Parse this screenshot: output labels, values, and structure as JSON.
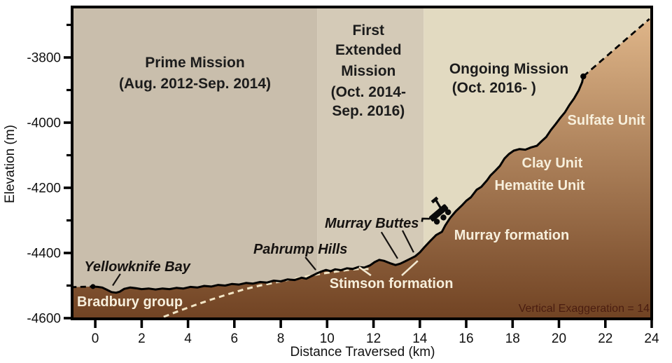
{
  "chart_data": {
    "type": "area",
    "xlabel": "Distance Traversed (km)",
    "ylabel": "Elevation (m)",
    "xlim": [
      -1,
      24
    ],
    "ylim": [
      -4600,
      -3645
    ],
    "x_ticks": [
      0,
      2,
      4,
      6,
      8,
      10,
      12,
      14,
      16,
      18,
      20,
      22,
      24
    ],
    "y_ticks": [
      -3800,
      -4000,
      -4200,
      -4400,
      -4600
    ],
    "y_ticks_minor": [
      -3700,
      -3900,
      -4100,
      -4300,
      -4500
    ],
    "ve_note": "Vertical Exaggeration = 14",
    "series": [
      {
        "name": "elevation-profile-solid",
        "style": "solid",
        "points": [
          [
            -0.12,
            -4503
          ],
          [
            0.1,
            -4504
          ],
          [
            0.3,
            -4506
          ],
          [
            0.5,
            -4513
          ],
          [
            0.7,
            -4520
          ],
          [
            0.9,
            -4522
          ],
          [
            1.05,
            -4519
          ],
          [
            1.25,
            -4510
          ],
          [
            1.5,
            -4506
          ],
          [
            1.75,
            -4508
          ],
          [
            2.0,
            -4511
          ],
          [
            2.3,
            -4509
          ],
          [
            2.6,
            -4512
          ],
          [
            2.9,
            -4509
          ],
          [
            3.2,
            -4511
          ],
          [
            3.5,
            -4507
          ],
          [
            3.8,
            -4509
          ],
          [
            4.1,
            -4504
          ],
          [
            4.4,
            -4506
          ],
          [
            4.7,
            -4501
          ],
          [
            5.0,
            -4503
          ],
          [
            5.3,
            -4498
          ],
          [
            5.6,
            -4500
          ],
          [
            5.9,
            -4495
          ],
          [
            6.2,
            -4497
          ],
          [
            6.5,
            -4492
          ],
          [
            6.8,
            -4494
          ],
          [
            7.1,
            -4489
          ],
          [
            7.4,
            -4491
          ],
          [
            7.7,
            -4485
          ],
          [
            8.0,
            -4487
          ],
          [
            8.3,
            -4481
          ],
          [
            8.6,
            -4483
          ],
          [
            8.9,
            -4476
          ],
          [
            9.1,
            -4479
          ],
          [
            9.35,
            -4470
          ],
          [
            9.55,
            -4463
          ],
          [
            9.75,
            -4457
          ],
          [
            9.95,
            -4452
          ],
          [
            10.15,
            -4456
          ],
          [
            10.35,
            -4450
          ],
          [
            10.6,
            -4453
          ],
          [
            10.85,
            -4447
          ],
          [
            11.1,
            -4449
          ],
          [
            11.35,
            -4443
          ],
          [
            11.6,
            -4445
          ],
          [
            11.85,
            -4438
          ],
          [
            12.05,
            -4428
          ],
          [
            12.25,
            -4421
          ],
          [
            12.45,
            -4424
          ],
          [
            12.7,
            -4431
          ],
          [
            12.95,
            -4437
          ],
          [
            13.15,
            -4433
          ],
          [
            13.35,
            -4426
          ],
          [
            13.55,
            -4419
          ],
          [
            13.8,
            -4410
          ],
          [
            14.0,
            -4398
          ],
          [
            14.2,
            -4382
          ],
          [
            14.45,
            -4363
          ],
          [
            14.7,
            -4345
          ],
          [
            14.95,
            -4335
          ],
          [
            15.1,
            -4315
          ],
          [
            15.3,
            -4293
          ],
          [
            15.55,
            -4272
          ],
          [
            15.8,
            -4255
          ],
          [
            16.0,
            -4240
          ],
          [
            16.2,
            -4229
          ],
          [
            16.45,
            -4206
          ],
          [
            16.65,
            -4197
          ],
          [
            16.9,
            -4177
          ],
          [
            17.05,
            -4162
          ],
          [
            17.25,
            -4148
          ],
          [
            17.45,
            -4133
          ],
          [
            17.65,
            -4110
          ],
          [
            17.85,
            -4096
          ],
          [
            18.05,
            -4086
          ],
          [
            18.3,
            -4081
          ],
          [
            18.55,
            -4083
          ],
          [
            18.8,
            -4076
          ],
          [
            19.05,
            -4071
          ],
          [
            19.25,
            -4057
          ],
          [
            19.45,
            -4044
          ],
          [
            19.65,
            -4023
          ],
          [
            19.85,
            -4005
          ],
          [
            20.05,
            -3986
          ],
          [
            20.25,
            -3969
          ],
          [
            20.45,
            -3946
          ],
          [
            20.65,
            -3926
          ],
          [
            20.85,
            -3901
          ],
          [
            21.0,
            -3876
          ],
          [
            21.05,
            -3858
          ]
        ]
      },
      {
        "name": "pre-landing-dashed",
        "style": "dashed",
        "points": [
          [
            -1.05,
            -4505
          ],
          [
            -0.12,
            -4503
          ]
        ]
      },
      {
        "name": "planned-route-dashed",
        "style": "dashed",
        "points": [
          [
            21.05,
            -3858
          ],
          [
            23.9,
            -3682
          ]
        ]
      },
      {
        "name": "traverse-path-on-terrain",
        "style": "dashed-light",
        "points": [
          [
            2.95,
            -4596
          ],
          [
            3.6,
            -4578
          ],
          [
            4.3,
            -4560
          ],
          [
            5.0,
            -4543
          ],
          [
            5.7,
            -4527
          ],
          [
            6.4,
            -4512
          ],
          [
            7.1,
            -4500
          ],
          [
            7.8,
            -4490
          ],
          [
            8.5,
            -4480
          ],
          [
            9.1,
            -4472
          ],
          [
            9.7,
            -4464
          ],
          [
            10.3,
            -4458
          ],
          [
            10.9,
            -4452
          ],
          [
            11.5,
            -4448
          ],
          [
            11.9,
            -4450
          ]
        ]
      }
    ],
    "markers": [
      {
        "name": "landing-site-dot",
        "x": -0.1,
        "y": -4503,
        "r": 3.5
      },
      {
        "name": "current-position-dot",
        "x": 21.05,
        "y": -3858,
        "r": 4.2
      }
    ],
    "mission_phases": [
      {
        "name": "prime-mission",
        "x_start": -1,
        "x_end": 9.57,
        "band_color": "#c9beac",
        "lines": [
          {
            "text": "Prime Mission",
            "x": 4.3,
            "y": -3830
          },
          {
            "text": "(Aug. 2012-Sep. 2014)",
            "x": 4.3,
            "y": -3895
          }
        ]
      },
      {
        "name": "first-extended-mission",
        "x_start": 9.57,
        "x_end": 14.16,
        "band_color": "#d4cab7",
        "lines": [
          {
            "text": "First",
            "x": 11.78,
            "y": -3731
          },
          {
            "text": "Extended",
            "x": 11.78,
            "y": -3791
          },
          {
            "text": "Mission",
            "x": 11.78,
            "y": -3856
          },
          {
            "text": "(Oct. 2014-",
            "x": 11.78,
            "y": -3920
          },
          {
            "text": "Sep. 2016)",
            "x": 11.78,
            "y": -3978
          }
        ]
      },
      {
        "name": "ongoing-mission",
        "x_start": 14.16,
        "x_end": 24,
        "band_color": "#e2dac1",
        "lines": [
          {
            "text": "Ongoing Mission",
            "x": 17.84,
            "y": -3849
          },
          {
            "text": "(Oct. 2016- )",
            "x": 17.2,
            "y": -3907
          }
        ]
      }
    ],
    "site_labels": [
      {
        "text": "Yellowknife Bay",
        "x": 1.81,
        "y": -4456,
        "leaders": [
          [
            1.08,
            -4464,
            0.75,
            -4500
          ]
        ]
      },
      {
        "text": "Pahrump Hills",
        "x": 8.85,
        "y": -4402,
        "leaders": [
          [
            9.06,
            -4413,
            9.51,
            -4452
          ]
        ]
      },
      {
        "text": "Murray Buttes",
        "x": 11.93,
        "y": -4323,
        "leaders": [
          [
            12.34,
            -4336,
            13.04,
            -4417
          ],
          [
            13.25,
            -4331,
            13.73,
            -4398
          ]
        ]
      }
    ],
    "unit_labels": [
      {
        "text": "Bradbury group",
        "x": -0.79,
        "y": -4563,
        "anchor": "start",
        "leaders": []
      },
      {
        "text": "Stimson formation",
        "x": 12.77,
        "y": -4507,
        "anchor": "middle",
        "leaders": [
          [
            11.89,
            -4469,
            11.38,
            -4443
          ],
          [
            13.22,
            -4469,
            13.91,
            -4424
          ]
        ]
      },
      {
        "text": "Murray formation",
        "x": 17.96,
        "y": -4359,
        "anchor": "middle",
        "leaders": []
      },
      {
        "text": "Hematite Unit",
        "x": 19.17,
        "y": -4206,
        "anchor": "middle",
        "leaders": []
      },
      {
        "text": "Clay Unit",
        "x": 19.71,
        "y": -4138,
        "anchor": "middle",
        "leaders": []
      },
      {
        "text": "Sulfate Unit",
        "x": 22.04,
        "y": -4006,
        "anchor": "middle",
        "leaders": []
      }
    ],
    "colors": {
      "outer_background": "#ffffff",
      "terrain_gradient_top": "#e3ba8d",
      "terrain_gradient_bottom": "#714323",
      "profile_line": "#000000",
      "traverse_dashes": "#f3e6c6",
      "leader_dark": "#151210",
      "leader_light": "#f3e9d2",
      "axis_color": "#000000",
      "ve_text": "#4a1d10"
    }
  }
}
